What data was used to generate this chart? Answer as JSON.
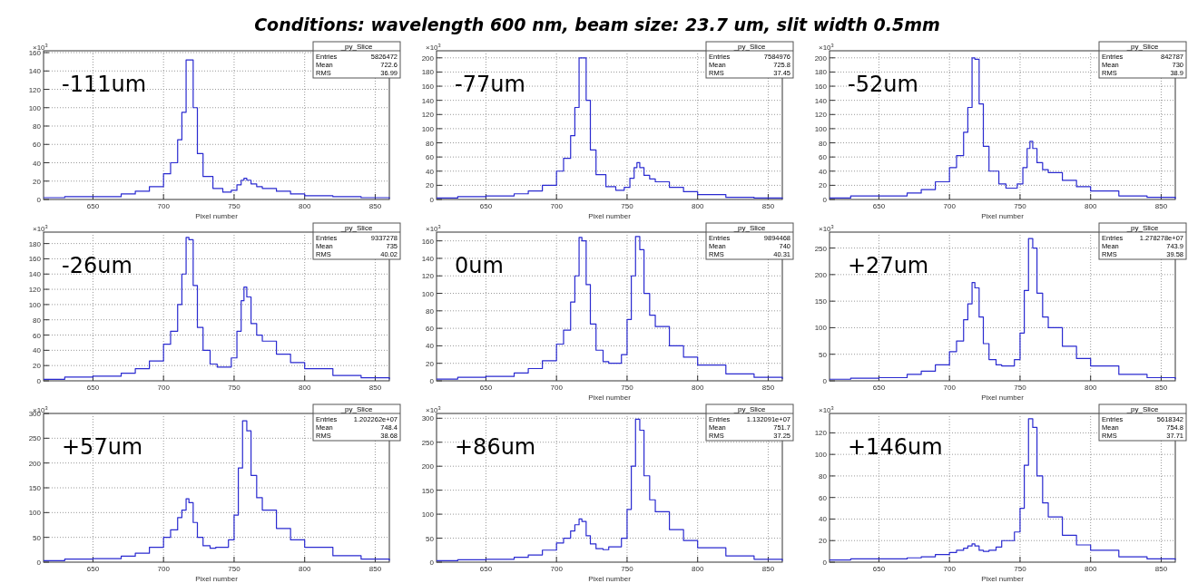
{
  "chart_data": [
    {
      "type": "step",
      "title": "Conditions: wavelength 600 nm, beam size: 23.7 um, slit width 0.5mm",
      "xlabel": "Pixel number",
      "ylabel": "×10$^{3}$",
      "grid": true,
      "xlim": [
        615,
        860
      ],
      "xticks": [
        650,
        700,
        750,
        800,
        850
      ],
      "ylim": [
        0,
        162
      ],
      "yticks": [
        0,
        20,
        40,
        60,
        80,
        100,
        120,
        140,
        160
      ],
      "annotations": [
        "-111um",
        "_py_Slice",
        "Entries",
        "5826472",
        "Mean",
        "722.6",
        "RMS",
        "36.99"
      ],
      "series": [
        {
          "color": "#2a2ad0",
          "x": [
            615,
            630,
            650,
            670,
            680,
            690,
            700,
            705,
            710,
            713,
            716,
            718,
            721,
            724,
            728,
            735,
            742,
            748,
            752,
            755,
            757,
            759,
            762,
            766,
            770,
            780,
            790,
            800,
            820,
            840,
            860
          ],
          "values": [
            2,
            3,
            3,
            6,
            9,
            14,
            28,
            40,
            65,
            95,
            152,
            152,
            100,
            50,
            25,
            12,
            8,
            10,
            16,
            21,
            23,
            21,
            17,
            14,
            12,
            9,
            6,
            4,
            3,
            2,
            1
          ]
        }
      ]
    },
    {
      "type": "step",
      "xlabel": "Pixel number",
      "ylabel": "×10$^{3}$",
      "grid": true,
      "xlim": [
        615,
        860
      ],
      "xticks": [
        650,
        700,
        750,
        800,
        850
      ],
      "ylim": [
        0,
        210
      ],
      "yticks": [
        0,
        20,
        40,
        60,
        80,
        100,
        120,
        140,
        160,
        180,
        200
      ],
      "annotations": [
        "-77um",
        "_py_Slice",
        "Entries",
        "7584976",
        "Mean",
        "725.8",
        "RMS",
        "37.45"
      ],
      "series": [
        {
          "color": "#2a2ad0",
          "x": [
            615,
            630,
            650,
            670,
            680,
            690,
            700,
            705,
            710,
            713,
            716,
            718,
            721,
            724,
            728,
            735,
            742,
            748,
            752,
            755,
            757,
            759,
            762,
            766,
            770,
            780,
            790,
            800,
            820,
            840,
            860
          ],
          "values": [
            2,
            4,
            5,
            8,
            12,
            20,
            40,
            58,
            90,
            130,
            200,
            200,
            140,
            70,
            35,
            18,
            13,
            17,
            30,
            45,
            52,
            45,
            34,
            29,
            25,
            17,
            11,
            7,
            3,
            2,
            1
          ]
        }
      ]
    },
    {
      "type": "step",
      "xlabel": "Pixel number",
      "ylabel": "×10$^{3}$",
      "grid": true,
      "xlim": [
        615,
        860
      ],
      "xticks": [
        650,
        700,
        750,
        800,
        850
      ],
      "ylim": [
        0,
        210
      ],
      "yticks": [
        0,
        20,
        40,
        60,
        80,
        100,
        120,
        140,
        160,
        180,
        200
      ],
      "annotations": [
        "-52um",
        "_py_Slice",
        "Entries",
        "842787",
        "Mean",
        "730",
        "RMS",
        "38.9"
      ],
      "series": [
        {
          "color": "#2a2ad0",
          "x": [
            615,
            630,
            650,
            670,
            680,
            690,
            700,
            705,
            710,
            713,
            716,
            718,
            721,
            724,
            728,
            735,
            740,
            748,
            752,
            755,
            757,
            759,
            762,
            766,
            770,
            780,
            790,
            800,
            820,
            840,
            860
          ],
          "values": [
            2,
            5,
            5,
            9,
            14,
            25,
            45,
            62,
            95,
            130,
            200,
            198,
            135,
            75,
            40,
            22,
            16,
            22,
            45,
            72,
            82,
            72,
            52,
            42,
            38,
            27,
            18,
            12,
            5,
            3,
            1
          ]
        }
      ]
    },
    {
      "type": "step",
      "ylabel": "×10$^{3}$",
      "grid": true,
      "xlim": [
        615,
        860
      ],
      "xticks": [
        650,
        700,
        750,
        800,
        850
      ],
      "ylim": [
        0,
        195
      ],
      "yticks": [
        0,
        20,
        40,
        60,
        80,
        100,
        120,
        140,
        160,
        180
      ],
      "annotations": [
        "-26um",
        "_py_Slice",
        "Entries",
        "9337278",
        "Mean",
        "735",
        "RMS",
        "40.02"
      ],
      "series": [
        {
          "color": "#2a2ad0",
          "x": [
            615,
            630,
            650,
            670,
            680,
            690,
            700,
            705,
            710,
            713,
            716,
            718,
            721,
            724,
            728,
            733,
            738,
            748,
            752,
            755,
            757,
            759,
            762,
            766,
            770,
            780,
            790,
            800,
            820,
            840,
            860
          ],
          "values": [
            2,
            5,
            6,
            10,
            16,
            26,
            48,
            65,
            100,
            140,
            188,
            185,
            125,
            70,
            40,
            22,
            18,
            30,
            65,
            105,
            123,
            110,
            75,
            60,
            52,
            35,
            24,
            16,
            7,
            4,
            2
          ]
        }
      ]
    },
    {
      "type": "step",
      "xlabel": "Pixel number",
      "ylabel": "×10$^{3}$",
      "grid": true,
      "xlim": [
        615,
        860
      ],
      "xticks": [
        650,
        700,
        750,
        800,
        850
      ],
      "ylim": [
        0,
        170
      ],
      "yticks": [
        0,
        20,
        40,
        60,
        80,
        100,
        120,
        140,
        160
      ],
      "annotations": [
        "0um",
        "_py_Slice",
        "Entries",
        "9894468",
        "Mean",
        "740",
        "RMS",
        "40.31"
      ],
      "series": [
        {
          "color": "#2a2ad0",
          "x": [
            615,
            630,
            650,
            670,
            680,
            690,
            700,
            705,
            710,
            713,
            716,
            718,
            721,
            724,
            728,
            733,
            737,
            746,
            750,
            753,
            756,
            759,
            762,
            766,
            770,
            780,
            790,
            800,
            820,
            840,
            860
          ],
          "values": [
            2,
            4,
            5,
            9,
            14,
            23,
            42,
            58,
            90,
            120,
            164,
            160,
            110,
            65,
            35,
            22,
            20,
            30,
            70,
            120,
            165,
            150,
            100,
            75,
            62,
            40,
            27,
            18,
            8,
            4,
            2
          ]
        }
      ]
    },
    {
      "type": "step",
      "xlabel": "Pixel number",
      "ylabel": "×10$^{3}$",
      "grid": true,
      "xlim": [
        615,
        860
      ],
      "xticks": [
        650,
        700,
        750,
        800,
        850
      ],
      "ylim": [
        0,
        280
      ],
      "yticks": [
        0,
        50,
        100,
        150,
        200,
        250
      ],
      "annotations": [
        "+27um",
        "_py_Slice",
        "Entries",
        "1.278278e+07",
        "Mean",
        "743.9",
        "RMS",
        "39.58"
      ],
      "series": [
        {
          "color": "#2a2ad0",
          "x": [
            615,
            630,
            650,
            670,
            680,
            690,
            700,
            705,
            710,
            713,
            716,
            718,
            721,
            724,
            728,
            733,
            737,
            746,
            750,
            753,
            756,
            759,
            762,
            766,
            770,
            780,
            790,
            800,
            820,
            840,
            860
          ],
          "values": [
            3,
            5,
            6,
            12,
            18,
            30,
            55,
            75,
            115,
            145,
            185,
            175,
            120,
            70,
            40,
            30,
            28,
            40,
            90,
            170,
            268,
            250,
            165,
            120,
            100,
            65,
            42,
            28,
            12,
            6,
            3
          ]
        }
      ]
    },
    {
      "type": "step",
      "xlabel": "Pixel number",
      "ylabel": "×10$^{3}$",
      "grid": true,
      "xlim": [
        615,
        860
      ],
      "xticks": [
        650,
        700,
        750,
        800,
        850
      ],
      "ylim": [
        0,
        300
      ],
      "yticks": [
        0,
        50,
        100,
        150,
        200,
        250,
        300
      ],
      "annotations": [
        "+57um",
        "_py_Slice",
        "Entries",
        "1.202262e+07",
        "Mean",
        "748.4",
        "RMS",
        "38.68"
      ],
      "series": [
        {
          "color": "#2a2ad0",
          "x": [
            615,
            630,
            650,
            670,
            680,
            690,
            700,
            705,
            710,
            713,
            716,
            718,
            721,
            724,
            728,
            733,
            737,
            746,
            750,
            753,
            756,
            759,
            762,
            766,
            770,
            780,
            790,
            800,
            820,
            840,
            860
          ],
          "values": [
            3,
            6,
            7,
            12,
            18,
            30,
            50,
            65,
            90,
            105,
            128,
            120,
            80,
            50,
            33,
            28,
            30,
            45,
            95,
            190,
            285,
            265,
            175,
            130,
            105,
            68,
            45,
            30,
            13,
            6,
            3
          ]
        }
      ]
    },
    {
      "type": "step",
      "xlabel": "Pixel number",
      "ylabel": "×10$^{3}$",
      "grid": true,
      "xlim": [
        615,
        860
      ],
      "xticks": [
        650,
        700,
        750,
        800,
        850
      ],
      "ylim": [
        0,
        310
      ],
      "yticks": [
        0,
        50,
        100,
        150,
        200,
        250,
        300
      ],
      "annotations": [
        "+86um",
        "_py_Slice",
        "Entries",
        "1.132091e+07",
        "Mean",
        "751.7",
        "RMS",
        "37.25"
      ],
      "series": [
        {
          "color": "#2a2ad0",
          "x": [
            615,
            630,
            650,
            670,
            680,
            690,
            700,
            705,
            710,
            713,
            716,
            718,
            721,
            724,
            728,
            733,
            737,
            746,
            750,
            753,
            756,
            759,
            762,
            766,
            770,
            780,
            790,
            800,
            820,
            840,
            860
          ],
          "values": [
            3,
            5,
            6,
            10,
            15,
            25,
            40,
            50,
            65,
            78,
            90,
            85,
            55,
            38,
            28,
            26,
            32,
            50,
            110,
            200,
            298,
            275,
            180,
            130,
            105,
            68,
            45,
            30,
            13,
            6,
            3
          ]
        }
      ]
    },
    {
      "type": "step",
      "xlabel": "Pixel number",
      "ylabel": "×10$^{3}$",
      "grid": true,
      "xlim": [
        615,
        860
      ],
      "xticks": [
        650,
        700,
        750,
        800,
        850
      ],
      "ylim": [
        0,
        138
      ],
      "yticks": [
        0,
        20,
        40,
        60,
        80,
        100,
        120
      ],
      "annotations": [
        "+146um",
        "_py_Slice",
        "Entries",
        "5618342",
        "Mean",
        "754.8",
        "RMS",
        "37.71"
      ],
      "series": [
        {
          "color": "#2a2ad0",
          "x": [
            615,
            630,
            650,
            670,
            680,
            690,
            700,
            705,
            710,
            713,
            716,
            718,
            721,
            724,
            728,
            733,
            737,
            746,
            750,
            753,
            756,
            759,
            762,
            766,
            770,
            780,
            790,
            800,
            820,
            840,
            860
          ],
          "values": [
            2,
            3,
            3,
            4,
            5,
            7,
            9,
            11,
            13,
            15,
            17,
            15,
            11,
            10,
            11,
            14,
            20,
            28,
            50,
            90,
            133,
            125,
            80,
            55,
            42,
            25,
            16,
            11,
            5,
            3,
            2
          ]
        }
      ]
    }
  ]
}
